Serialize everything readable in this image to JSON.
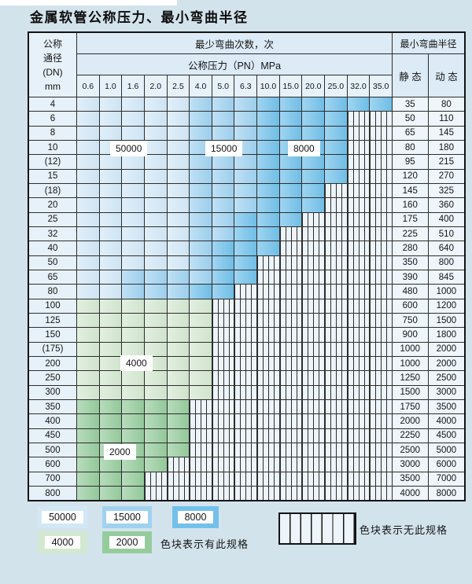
{
  "title": "金属软管公称压力、最小弯曲半径",
  "header": {
    "dn_lines": [
      "公称",
      "通径",
      "(DN)",
      "mm"
    ],
    "bend_cycles_label": "最少弯曲次数，次",
    "pressure_label": "公称压力（PN）MPa",
    "radius_label": "最小弯曲半径",
    "static_label": "静 态",
    "dynamic_label": "动 态",
    "pressures": [
      "0.6",
      "1.0",
      "1.6",
      "2.0",
      "2.5",
      "4.0",
      "5.0",
      "6.3",
      "10.0",
      "15.0",
      "20.0",
      "25.0",
      "32.0",
      "35.0"
    ]
  },
  "colors": {
    "band_50000": "#d2e8f7",
    "band_15000": "#a0d2f0",
    "band_8000": "#72c1ea",
    "band_4000": "#d4e8d1",
    "band_2000": "#96cc9d",
    "hatch_bg": "#edf4fa",
    "grid_line": "#2d2d2d",
    "header_bg": "#dcebf6",
    "header_bg2": "#e7f1f9",
    "static_dynamic_bg": "#eef5fb",
    "page_bg": "#d3e3ec"
  },
  "cell_legend_codes": {
    "l": "50000-cycles",
    "m": "15000-cycles",
    "d": "8000-cycles",
    "g": "4000-cycles",
    "G": "2000-cycles",
    "h": "no-spec-hatched"
  },
  "table": {
    "rows": [
      {
        "dn": "4",
        "static": "35",
        "dynamic": "80",
        "cells": "lllllmmmdddddd"
      },
      {
        "dn": "6",
        "static": "50",
        "dynamic": "110",
        "cells": "lllllmmmddddhh"
      },
      {
        "dn": "8",
        "static": "65",
        "dynamic": "145",
        "cells": "lllllmmmddddhh"
      },
      {
        "dn": "10",
        "static": "80",
        "dynamic": "180",
        "cells": "lllllmmmddddhh"
      },
      {
        "dn": "(12)",
        "static": "95",
        "dynamic": "215",
        "cells": "lllllmmmddddhh"
      },
      {
        "dn": "15",
        "static": "120",
        "dynamic": "270",
        "cells": "lllllmmmddddhh"
      },
      {
        "dn": "(18)",
        "static": "145",
        "dynamic": "325",
        "cells": "lllllmmmdddhhh"
      },
      {
        "dn": "20",
        "static": "160",
        "dynamic": "360",
        "cells": "lllllmmmdddhhh"
      },
      {
        "dn": "25",
        "static": "175",
        "dynamic": "400",
        "cells": "lllllmmdddhhhh"
      },
      {
        "dn": "32",
        "static": "225",
        "dynamic": "510",
        "cells": "lllllmmddhhhhh"
      },
      {
        "dn": "40",
        "static": "280",
        "dynamic": "640",
        "cells": "lllllmdddhhhhh"
      },
      {
        "dn": "50",
        "static": "350",
        "dynamic": "800",
        "cells": "lllllmddhhhhhh"
      },
      {
        "dn": "65",
        "static": "390",
        "dynamic": "845",
        "cells": "llmmmmddhhhhhh"
      },
      {
        "dn": "80",
        "static": "480",
        "dynamic": "1000",
        "cells": "llmmmddhhhhhhh"
      },
      {
        "dn": "100",
        "static": "600",
        "dynamic": "1200",
        "cells": "gggggghhhhhhhh"
      },
      {
        "dn": "125",
        "static": "750",
        "dynamic": "1500",
        "cells": "gggggghhhhhhhh"
      },
      {
        "dn": "150",
        "static": "900",
        "dynamic": "1800",
        "cells": "gggggghhhhhhhh"
      },
      {
        "dn": "(175)",
        "static": "1000",
        "dynamic": "2000",
        "cells": "gggggghhhhhhhh"
      },
      {
        "dn": "200",
        "static": "1000",
        "dynamic": "2000",
        "cells": "gggggghhhhhhhh"
      },
      {
        "dn": "250",
        "static": "1250",
        "dynamic": "2500",
        "cells": "gggggghhhhhhhh"
      },
      {
        "dn": "300",
        "static": "1500",
        "dynamic": "3000",
        "cells": "gggggghhhhhhhh"
      },
      {
        "dn": "350",
        "static": "1750",
        "dynamic": "3500",
        "cells": "GGGGGhhhhhhhhh"
      },
      {
        "dn": "400",
        "static": "2000",
        "dynamic": "4000",
        "cells": "GGGGGhhhhhhhhh"
      },
      {
        "dn": "450",
        "static": "2250",
        "dynamic": "4500",
        "cells": "GGGGGhhhhhhhhh"
      },
      {
        "dn": "500",
        "static": "2500",
        "dynamic": "5000",
        "cells": "GGGGGhhhhhhhhh"
      },
      {
        "dn": "600",
        "static": "3000",
        "dynamic": "6000",
        "cells": "GGGGhhhhhhhhhh"
      },
      {
        "dn": "700",
        "static": "3500",
        "dynamic": "7000",
        "cells": "GGGhhhhhhhhhhh"
      },
      {
        "dn": "800",
        "static": "4000",
        "dynamic": "8000",
        "cells": "GGGhhhhhhhhhhh"
      }
    ]
  },
  "band_labels": {
    "b50000": "50000",
    "b15000": "15000",
    "b8000": "8000",
    "b4000": "4000",
    "b2000": "2000"
  },
  "legend": {
    "chips": {
      "c50000": "50000",
      "c15000": "15000",
      "c8000": "8000",
      "c4000": "4000",
      "c2000": "2000"
    },
    "has_spec_text": "色块表示有此规格",
    "no_spec_text": "色块表示无此规格"
  }
}
